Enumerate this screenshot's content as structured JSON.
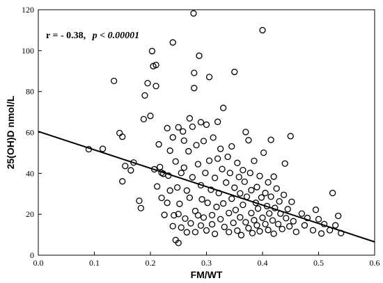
{
  "chart_data": {
    "type": "scatter",
    "xlabel": "FM/WT",
    "ylabel": "25(OH)D nmol/L",
    "xlim": [
      0.0,
      0.6
    ],
    "ylim": [
      0,
      120
    ],
    "x_ticks": [
      "0.0",
      "0.1",
      "0.2",
      "0.3",
      "0.4",
      "0.5",
      "0.6"
    ],
    "y_ticks": [
      "0",
      "20",
      "40",
      "60",
      "80",
      "100",
      "120"
    ],
    "grid": false,
    "annotation": {
      "r_text": "r =  - 0.38,",
      "p_text": "p < 0.00001"
    },
    "regression_line": {
      "x": [
        0.0,
        0.6
      ],
      "y": [
        60.5,
        6.5
      ]
    },
    "points": [
      [
        0.09,
        51.8
      ],
      [
        0.115,
        52.0
      ],
      [
        0.135,
        85.2
      ],
      [
        0.145,
        59.7
      ],
      [
        0.15,
        36.1
      ],
      [
        0.15,
        57.9
      ],
      [
        0.155,
        43.6
      ],
      [
        0.165,
        41.5
      ],
      [
        0.17,
        45.3
      ],
      [
        0.18,
        26.6
      ],
      [
        0.183,
        23.0
      ],
      [
        0.188,
        66.5
      ],
      [
        0.19,
        78.1
      ],
      [
        0.195,
        84.1
      ],
      [
        0.2,
        68.1
      ],
      [
        0.203,
        99.8
      ],
      [
        0.205,
        92.4
      ],
      [
        0.207,
        42.0
      ],
      [
        0.21,
        93.0
      ],
      [
        0.21,
        82.7
      ],
      [
        0.212,
        33.6
      ],
      [
        0.215,
        54.2
      ],
      [
        0.217,
        43.1
      ],
      [
        0.22,
        40.3
      ],
      [
        0.22,
        28.0
      ],
      [
        0.223,
        39.8
      ],
      [
        0.225,
        19.7
      ],
      [
        0.23,
        25.6
      ],
      [
        0.23,
        62.1
      ],
      [
        0.232,
        38.9
      ],
      [
        0.235,
        51.1
      ],
      [
        0.235,
        31.6
      ],
      [
        0.24,
        104.0
      ],
      [
        0.24,
        57.6
      ],
      [
        0.24,
        14.2
      ],
      [
        0.242,
        19.5
      ],
      [
        0.245,
        7.4
      ],
      [
        0.245,
        45.8
      ],
      [
        0.248,
        33.1
      ],
      [
        0.25,
        62.5
      ],
      [
        0.25,
        20.1
      ],
      [
        0.25,
        6.0
      ],
      [
        0.252,
        25.1
      ],
      [
        0.255,
        40.2
      ],
      [
        0.255,
        13.5
      ],
      [
        0.258,
        60.5
      ],
      [
        0.26,
        56.0
      ],
      [
        0.26,
        42.8
      ],
      [
        0.262,
        17.9
      ],
      [
        0.265,
        31.6
      ],
      [
        0.265,
        11.2
      ],
      [
        0.268,
        50.8
      ],
      [
        0.27,
        66.9
      ],
      [
        0.27,
        28.1
      ],
      [
        0.272,
        15.6
      ],
      [
        0.275,
        62.8
      ],
      [
        0.275,
        38.1
      ],
      [
        0.277,
        118.2
      ],
      [
        0.278,
        89.1
      ],
      [
        0.278,
        81.7
      ],
      [
        0.28,
        21.6
      ],
      [
        0.28,
        11.3
      ],
      [
        0.282,
        53.8
      ],
      [
        0.285,
        44.5
      ],
      [
        0.285,
        19.5
      ],
      [
        0.287,
        97.5
      ],
      [
        0.29,
        65.0
      ],
      [
        0.29,
        34.2
      ],
      [
        0.29,
        14.5
      ],
      [
        0.292,
        27.3
      ],
      [
        0.295,
        55.8
      ],
      [
        0.295,
        18.4
      ],
      [
        0.298,
        40.2
      ],
      [
        0.3,
        63.8
      ],
      [
        0.3,
        12.1
      ],
      [
        0.302,
        25.6
      ],
      [
        0.305,
        87.1
      ],
      [
        0.305,
        46.2
      ],
      [
        0.308,
        32.0
      ],
      [
        0.31,
        19.6
      ],
      [
        0.31,
        15.1
      ],
      [
        0.312,
        57.5
      ],
      [
        0.315,
        37.8
      ],
      [
        0.315,
        10.4
      ],
      [
        0.318,
        23.6
      ],
      [
        0.32,
        65.2
      ],
      [
        0.32,
        47.2
      ],
      [
        0.322,
        30.4
      ],
      [
        0.325,
        52.0
      ],
      [
        0.325,
        17.6
      ],
      [
        0.328,
        42.1
      ],
      [
        0.33,
        72.0
      ],
      [
        0.33,
        25.3
      ],
      [
        0.332,
        13.8
      ],
      [
        0.335,
        35.5
      ],
      [
        0.338,
        48.1
      ],
      [
        0.34,
        20.6
      ],
      [
        0.34,
        11.3
      ],
      [
        0.342,
        40.2
      ],
      [
        0.345,
        27.6
      ],
      [
        0.345,
        53.2
      ],
      [
        0.348,
        15.8
      ],
      [
        0.35,
        89.6
      ],
      [
        0.35,
        33.0
      ],
      [
        0.352,
        22.1
      ],
      [
        0.355,
        45.1
      ],
      [
        0.355,
        12.0
      ],
      [
        0.358,
        38.2
      ],
      [
        0.36,
        18.5
      ],
      [
        0.36,
        30.2
      ],
      [
        0.362,
        9.8
      ],
      [
        0.365,
        41.6
      ],
      [
        0.365,
        24.6
      ],
      [
        0.368,
        35.9
      ],
      [
        0.37,
        60.2
      ],
      [
        0.37,
        16.1
      ],
      [
        0.372,
        28.6
      ],
      [
        0.375,
        56.2
      ],
      [
        0.375,
        13.2
      ],
      [
        0.378,
        40.2
      ],
      [
        0.38,
        20.6
      ],
      [
        0.38,
        31.8
      ],
      [
        0.382,
        10.8
      ],
      [
        0.385,
        46.1
      ],
      [
        0.385,
        17.1
      ],
      [
        0.388,
        25.6
      ],
      [
        0.39,
        33.3
      ],
      [
        0.39,
        14.6
      ],
      [
        0.392,
        22.8
      ],
      [
        0.395,
        38.7
      ],
      [
        0.395,
        11.7
      ],
      [
        0.398,
        28.2
      ],
      [
        0.4,
        110.0
      ],
      [
        0.4,
        18.3
      ],
      [
        0.402,
        50.1
      ],
      [
        0.405,
        30.4
      ],
      [
        0.405,
        15.2
      ],
      [
        0.408,
        24.0
      ],
      [
        0.41,
        35.6
      ],
      [
        0.41,
        12.3
      ],
      [
        0.412,
        20.4
      ],
      [
        0.415,
        56.4
      ],
      [
        0.415,
        28.6
      ],
      [
        0.418,
        17.0
      ],
      [
        0.42,
        38.4
      ],
      [
        0.42,
        10.5
      ],
      [
        0.422,
        23.1
      ],
      [
        0.425,
        32.6
      ],
      [
        0.428,
        15.2
      ],
      [
        0.43,
        26.3
      ],
      [
        0.432,
        20.3
      ],
      [
        0.435,
        12.8
      ],
      [
        0.438,
        29.5
      ],
      [
        0.44,
        44.8
      ],
      [
        0.442,
        18.1
      ],
      [
        0.445,
        22.5
      ],
      [
        0.448,
        14.1
      ],
      [
        0.45,
        58.2
      ],
      [
        0.452,
        26.1
      ],
      [
        0.455,
        16.6
      ],
      [
        0.46,
        11.4
      ],
      [
        0.47,
        20.3
      ],
      [
        0.475,
        14.6
      ],
      [
        0.48,
        18.2
      ],
      [
        0.49,
        12.2
      ],
      [
        0.495,
        22.2
      ],
      [
        0.5,
        17.6
      ],
      [
        0.505,
        10.6
      ],
      [
        0.51,
        15.2
      ],
      [
        0.52,
        12.2
      ],
      [
        0.525,
        30.4
      ],
      [
        0.53,
        14.6
      ],
      [
        0.535,
        19.2
      ],
      [
        0.54,
        10.8
      ]
    ]
  }
}
